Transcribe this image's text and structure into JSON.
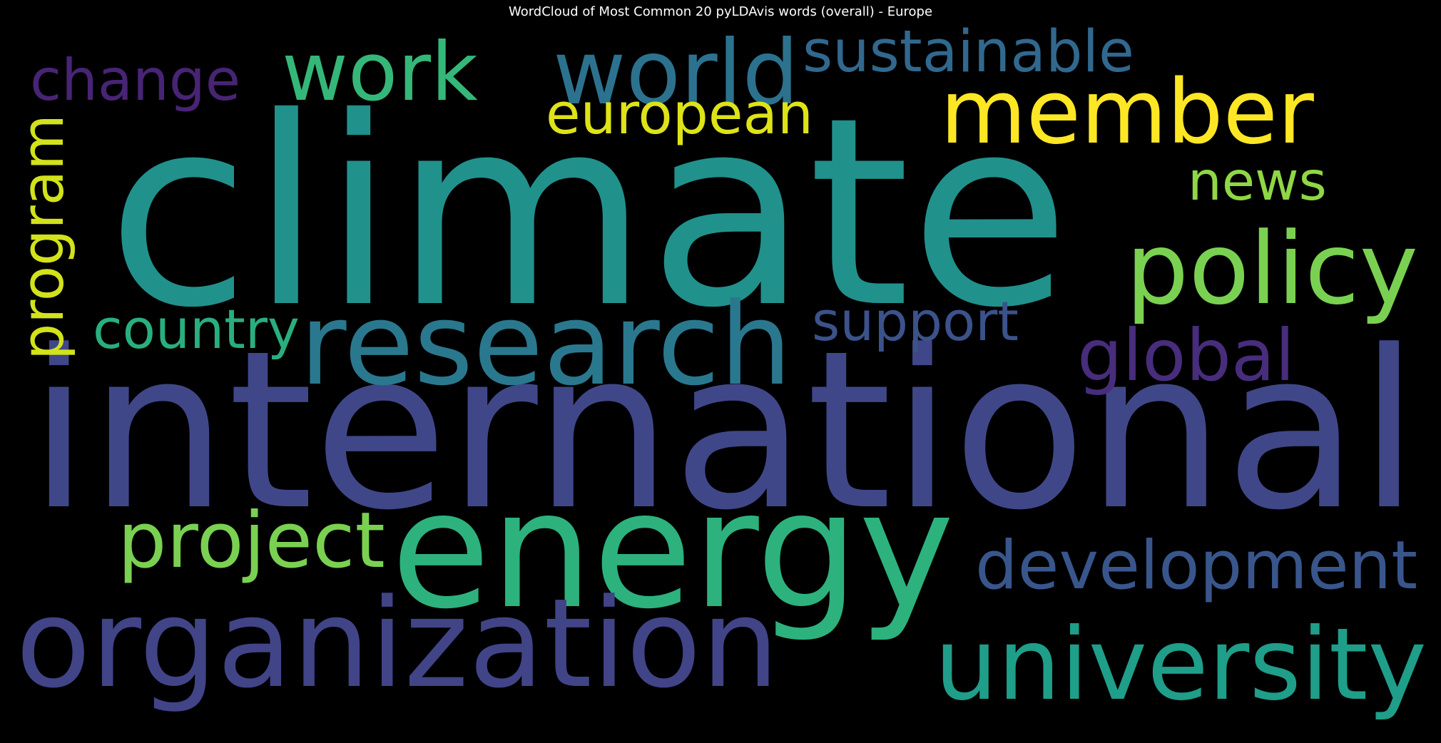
{
  "chart_data": {
    "type": "wordcloud",
    "title": "WordCloud of Most Common 20 pyLDAvis words (overall) - Europe",
    "background": "#000000",
    "colormap": "viridis",
    "words": [
      {
        "text": "climate",
        "weight": 100,
        "color": "#21918c",
        "orientation": "horizontal"
      },
      {
        "text": "international",
        "weight": 88,
        "color": "#404788",
        "orientation": "horizontal"
      },
      {
        "text": "energy",
        "weight": 72,
        "color": "#2db27d",
        "orientation": "horizontal"
      },
      {
        "text": "organization",
        "weight": 50,
        "color": "#414487",
        "orientation": "horizontal"
      },
      {
        "text": "research",
        "weight": 46,
        "color": "#2a788e",
        "orientation": "horizontal"
      },
      {
        "text": "member",
        "weight": 44,
        "color": "#fde725",
        "orientation": "horizontal"
      },
      {
        "text": "university",
        "weight": 40,
        "color": "#1f9e89",
        "orientation": "horizontal"
      },
      {
        "text": "policy",
        "weight": 37,
        "color": "#7ad151",
        "orientation": "horizontal"
      },
      {
        "text": "world",
        "weight": 33,
        "color": "#2c728e",
        "orientation": "horizontal"
      },
      {
        "text": "development",
        "weight": 30,
        "color": "#39568c",
        "orientation": "horizontal"
      },
      {
        "text": "work",
        "weight": 30,
        "color": "#35b779",
        "orientation": "horizontal"
      },
      {
        "text": "program",
        "weight": 27,
        "color": "#d2e21b",
        "orientation": "vertical"
      },
      {
        "text": "project",
        "weight": 27,
        "color": "#7ad151",
        "orientation": "horizontal"
      },
      {
        "text": "change",
        "weight": 26,
        "color": "#482475",
        "orientation": "horizontal"
      },
      {
        "text": "global",
        "weight": 25,
        "color": "#472d7b",
        "orientation": "horizontal"
      },
      {
        "text": "news",
        "weight": 23,
        "color": "#8fd744",
        "orientation": "horizontal"
      },
      {
        "text": "european",
        "weight": 21,
        "color": "#dde318",
        "orientation": "horizontal"
      },
      {
        "text": "sustainable",
        "weight": 21,
        "color": "#31688e",
        "orientation": "horizontal"
      },
      {
        "text": "country",
        "weight": 19,
        "color": "#29af7f",
        "orientation": "horizontal"
      },
      {
        "text": "support",
        "weight": 17,
        "color": "#3b528b",
        "orientation": "horizontal"
      }
    ]
  }
}
